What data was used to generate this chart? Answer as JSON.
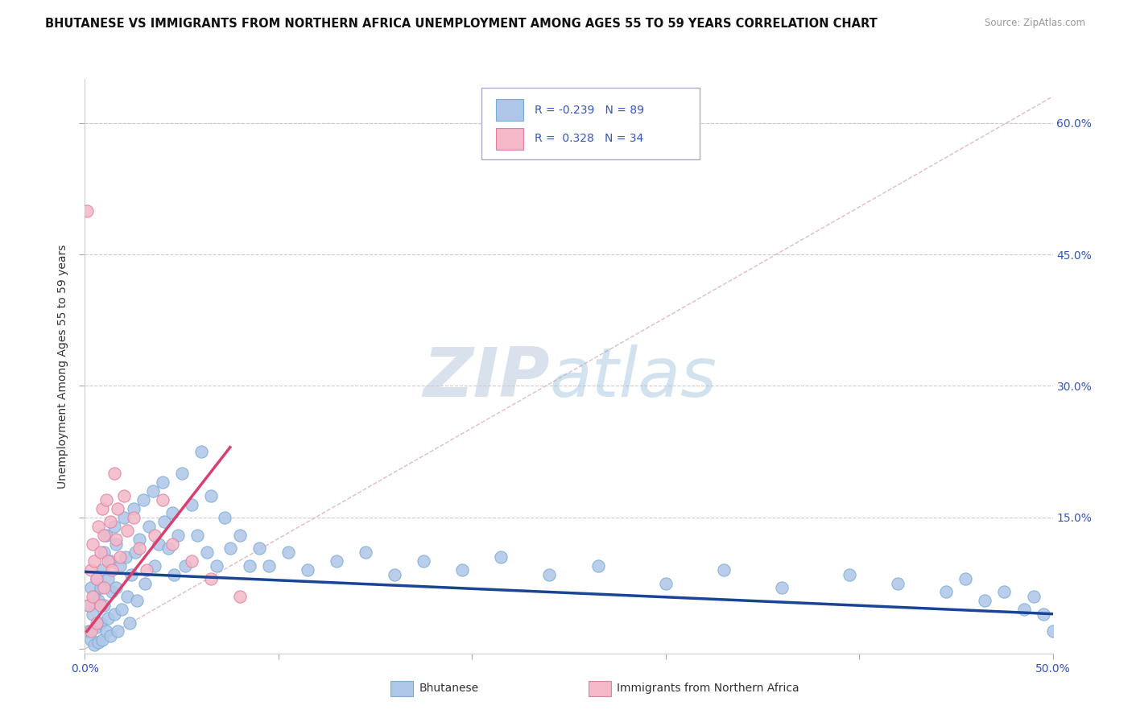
{
  "title": "BHUTANESE VS IMMIGRANTS FROM NORTHERN AFRICA UNEMPLOYMENT AMONG AGES 55 TO 59 YEARS CORRELATION CHART",
  "source": "Source: ZipAtlas.com",
  "ylabel": "Unemployment Among Ages 55 to 59 years",
  "xlim": [
    0.0,
    0.5
  ],
  "ylim": [
    -0.005,
    0.65
  ],
  "y_tick_positions_right": [
    0.0,
    0.15,
    0.3,
    0.45,
    0.6
  ],
  "y_tick_labels_right": [
    "",
    "15.0%",
    "30.0%",
    "45.0%",
    "60.0%"
  ],
  "grid_color": "#cccccc",
  "background_color": "#ffffff",
  "bhutanese_color": "#aec6e8",
  "bhutanese_edge_color": "#7aadd4",
  "northern_africa_color": "#f4b8c8",
  "northern_africa_edge_color": "#e080a0",
  "trend_blue_color": "#1a4496",
  "trend_pink_color": "#d94070",
  "diagonal_color": "#d4a0a8",
  "R_bhutanese": -0.239,
  "N_bhutanese": 89,
  "R_northern_africa": 0.328,
  "N_northern_africa": 34,
  "bhutanese_x": [
    0.002,
    0.002,
    0.003,
    0.003,
    0.004,
    0.005,
    0.005,
    0.006,
    0.006,
    0.007,
    0.007,
    0.008,
    0.008,
    0.009,
    0.009,
    0.01,
    0.01,
    0.011,
    0.011,
    0.012,
    0.012,
    0.013,
    0.013,
    0.014,
    0.015,
    0.015,
    0.016,
    0.016,
    0.017,
    0.018,
    0.019,
    0.02,
    0.021,
    0.022,
    0.023,
    0.024,
    0.025,
    0.026,
    0.027,
    0.028,
    0.03,
    0.031,
    0.033,
    0.035,
    0.036,
    0.038,
    0.04,
    0.041,
    0.043,
    0.045,
    0.046,
    0.048,
    0.05,
    0.052,
    0.055,
    0.058,
    0.06,
    0.063,
    0.065,
    0.068,
    0.072,
    0.075,
    0.08,
    0.085,
    0.09,
    0.095,
    0.105,
    0.115,
    0.13,
    0.145,
    0.16,
    0.175,
    0.195,
    0.215,
    0.24,
    0.265,
    0.3,
    0.33,
    0.36,
    0.395,
    0.42,
    0.445,
    0.455,
    0.465,
    0.475,
    0.485,
    0.49,
    0.495,
    0.5
  ],
  "bhutanese_y": [
    0.05,
    0.02,
    0.07,
    0.01,
    0.04,
    0.06,
    0.005,
    0.08,
    0.025,
    0.055,
    0.008,
    0.07,
    0.03,
    0.09,
    0.01,
    0.11,
    0.05,
    0.13,
    0.02,
    0.08,
    0.035,
    0.1,
    0.015,
    0.065,
    0.14,
    0.04,
    0.12,
    0.07,
    0.02,
    0.095,
    0.045,
    0.15,
    0.105,
    0.06,
    0.03,
    0.085,
    0.16,
    0.11,
    0.055,
    0.125,
    0.17,
    0.075,
    0.14,
    0.18,
    0.095,
    0.12,
    0.19,
    0.145,
    0.115,
    0.155,
    0.085,
    0.13,
    0.2,
    0.095,
    0.165,
    0.13,
    0.225,
    0.11,
    0.175,
    0.095,
    0.15,
    0.115,
    0.13,
    0.095,
    0.115,
    0.095,
    0.11,
    0.09,
    0.1,
    0.11,
    0.085,
    0.1,
    0.09,
    0.105,
    0.085,
    0.095,
    0.075,
    0.09,
    0.07,
    0.085,
    0.075,
    0.065,
    0.08,
    0.055,
    0.065,
    0.045,
    0.06,
    0.04,
    0.02
  ],
  "north_africa_x": [
    0.001,
    0.002,
    0.003,
    0.003,
    0.004,
    0.004,
    0.005,
    0.006,
    0.006,
    0.007,
    0.008,
    0.008,
    0.009,
    0.01,
    0.01,
    0.011,
    0.012,
    0.013,
    0.014,
    0.015,
    0.016,
    0.017,
    0.018,
    0.02,
    0.022,
    0.025,
    0.028,
    0.032,
    0.036,
    0.04,
    0.045,
    0.055,
    0.065,
    0.08
  ],
  "north_africa_y": [
    0.5,
    0.05,
    0.09,
    0.02,
    0.12,
    0.06,
    0.1,
    0.08,
    0.03,
    0.14,
    0.11,
    0.05,
    0.16,
    0.13,
    0.07,
    0.17,
    0.1,
    0.145,
    0.09,
    0.2,
    0.125,
    0.16,
    0.105,
    0.175,
    0.135,
    0.15,
    0.115,
    0.09,
    0.13,
    0.17,
    0.12,
    0.1,
    0.08,
    0.06
  ],
  "legend_blue_label": "Bhutanese",
  "legend_pink_label": "Immigrants from Northern Africa",
  "north_africa_trend_x_end": 0.075,
  "north_africa_trend_start_y": 0.02,
  "north_africa_trend_end_y": 0.23
}
